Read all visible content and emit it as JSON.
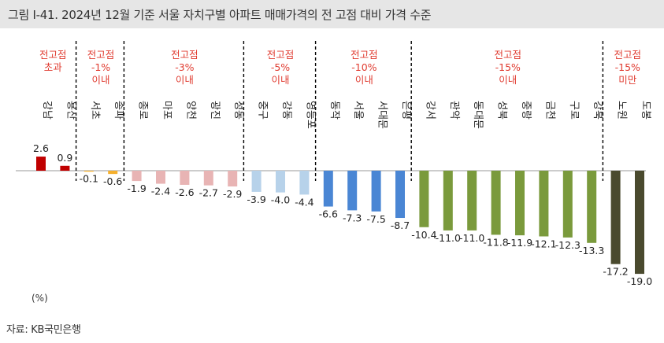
{
  "title": "그림 Ⅰ-41. 2024년 12월 기준 서울 자치구별 아파트 매매가격의 전 고점 대비 가격 수준",
  "unit_label": "(%)",
  "source": "자료: KB국민은행",
  "colors": {
    "title_bg": "#e6e6e6",
    "group_label": "#e03c31",
    "axis": "#999999",
    "divider": "#000000"
  },
  "chart_data": {
    "type": "bar",
    "categories": [
      "강남",
      "용산",
      "서초",
      "송파",
      "종로",
      "마포",
      "양천",
      "광진",
      "성동",
      "중구",
      "강동",
      "영등포",
      "동작",
      "서울",
      "서대문",
      "은평",
      "강서",
      "관악",
      "동대문",
      "성북",
      "중랑",
      "금천",
      "구로",
      "강북",
      "노원",
      "도봉"
    ],
    "values": [
      2.6,
      0.9,
      -0.1,
      -0.6,
      -1.9,
      -2.4,
      -2.6,
      -2.7,
      -2.9,
      -3.9,
      -4.0,
      -4.4,
      -6.6,
      -7.3,
      -7.5,
      -8.7,
      -10.4,
      -11.0,
      -11.0,
      -11.8,
      -11.9,
      -12.1,
      -12.3,
      -13.3,
      -17.2,
      -19.0
    ],
    "value_labels": [
      "2.6",
      "0.9",
      "-0.1",
      "-0.6",
      "-1.9",
      "-2.4",
      "-2.6",
      "-2.7",
      "-2.9",
      "-3.9",
      "-4.0",
      "-4.4",
      "-6.6",
      "-7.3",
      "-7.5",
      "-8.7",
      "-10.4",
      "-11.0",
      "-11.0",
      "-11.8",
      "-11.9",
      "-12.1",
      "-12.3",
      "-13.3",
      "-17.2",
      "-19.0"
    ],
    "bar_colors": [
      "#c00000",
      "#c00000",
      "#f5b02e",
      "#f5b02e",
      "#e8b4b4",
      "#e8b4b4",
      "#e8b4b4",
      "#e8b4b4",
      "#e8b4b4",
      "#b7d2ea",
      "#b7d2ea",
      "#b7d2ea",
      "#4a86d4",
      "#4a86d4",
      "#4a86d4",
      "#4a86d4",
      "#7a9a3c",
      "#7a9a3c",
      "#7a9a3c",
      "#7a9a3c",
      "#7a9a3c",
      "#7a9a3c",
      "#7a9a3c",
      "#7a9a3c",
      "#4a4a2e",
      "#4a4a2e"
    ],
    "groups": [
      {
        "label": "전고점 초과",
        "start": 0,
        "end": 1
      },
      {
        "label": "전고점 -1% 이내",
        "start": 2,
        "end": 3
      },
      {
        "label": "전고점 -3% 이내",
        "start": 4,
        "end": 8
      },
      {
        "label": "전고점 -5% 이내",
        "start": 9,
        "end": 11
      },
      {
        "label": "전고점 -10% 이내",
        "start": 12,
        "end": 15
      },
      {
        "label": "전고점 -15% 이내",
        "start": 16,
        "end": 23
      },
      {
        "label": "전고점 -15% 미만",
        "start": 24,
        "end": 25
      }
    ],
    "ylabel": "(%)",
    "ylim": [
      -19.0,
      2.6
    ]
  }
}
